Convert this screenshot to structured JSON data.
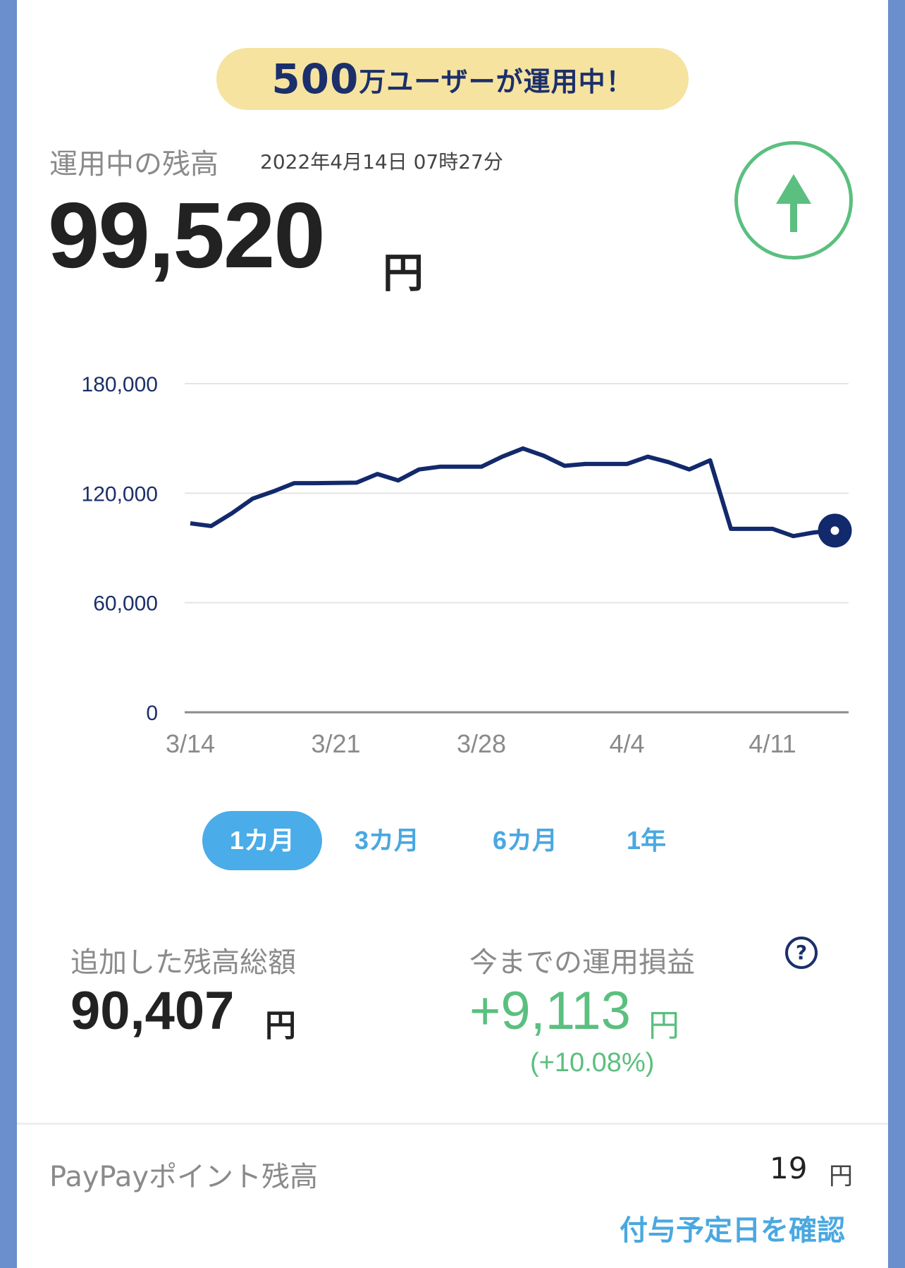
{
  "banner": {
    "count": "500",
    "text": "万ユーザーが運用中！"
  },
  "balance": {
    "label": "運用中の残高",
    "timestamp": "2022年4月14日 07時27分",
    "amount": "99,520",
    "unit": "円",
    "trend_icon": "arrow-up-icon"
  },
  "chart_data": {
    "type": "line",
    "y_ticks": [
      "180,000",
      "120,000",
      "60,000",
      "0"
    ],
    "x_ticks": [
      "3/14",
      "3/21",
      "3/28",
      "4/4",
      "4/11"
    ],
    "ylim": [
      0,
      180000
    ],
    "grid": true,
    "series": [
      {
        "color": "#12296b",
        "points": [
          [
            "3/14",
            103500
          ],
          [
            "3/15",
            102000
          ],
          [
            "3/16",
            109000
          ],
          [
            "3/17",
            117000
          ],
          [
            "3/18",
            121000
          ],
          [
            "3/19",
            125500
          ],
          [
            "3/20",
            125500
          ],
          [
            "3/22",
            125800
          ],
          [
            "3/23",
            130500
          ],
          [
            "3/24",
            127000
          ],
          [
            "3/25",
            133000
          ],
          [
            "3/26",
            134500
          ],
          [
            "3/28",
            134500
          ],
          [
            "3/29",
            140000
          ],
          [
            "3/30",
            144500
          ],
          [
            "3/31",
            140500
          ],
          [
            "4/1",
            135000
          ],
          [
            "4/2",
            136000
          ],
          [
            "4/4",
            136000
          ],
          [
            "4/5",
            140000
          ],
          [
            "4/6",
            137000
          ],
          [
            "4/7",
            133000
          ],
          [
            "4/8",
            138000
          ],
          [
            "4/9",
            100500
          ],
          [
            "4/11",
            100500
          ],
          [
            "4/12",
            96500
          ],
          [
            "4/13",
            98500
          ],
          [
            "4/14",
            99520
          ]
        ]
      }
    ]
  },
  "periods": {
    "items": [
      "1カ月",
      "3カ月",
      "6カ月",
      "1年"
    ],
    "selected": "1カ月"
  },
  "stats": {
    "added": {
      "label": "追加した残高総額",
      "value": "90,407",
      "unit": "円"
    },
    "profit": {
      "label": "今までの運用損益",
      "value": "+9,113",
      "unit": "円",
      "percent": "(+10.08%)",
      "help": "?"
    }
  },
  "points": {
    "label": "PayPayポイント残高",
    "value": "19",
    "unit": "円"
  },
  "link": {
    "label": "付与予定日を確認"
  },
  "colors": {
    "accent": "#4aa8e0",
    "navy": "#12296b",
    "positive": "#5bbf7f",
    "banner_bg": "#f6e3a0"
  }
}
